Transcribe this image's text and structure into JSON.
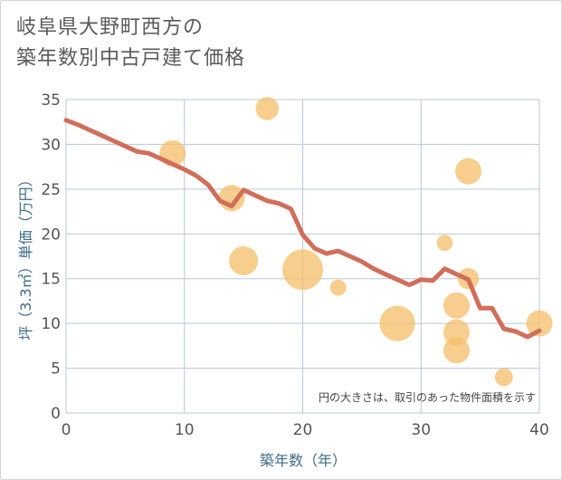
{
  "title_lines": [
    "岐阜県大野町西方の",
    "築年数別中古戸建て価格"
  ],
  "chart_data": {
    "type": "scatter",
    "title": "岐阜県大野町西方の築年数別中古戸建て価格",
    "xlabel": "築年数（年）",
    "ylabel": "坪（3.3㎡）単価（万円）",
    "xlim": [
      0,
      40
    ],
    "ylim": [
      0,
      35
    ],
    "xticks": [
      0,
      10,
      20,
      30,
      40
    ],
    "yticks": [
      0,
      5,
      10,
      15,
      20,
      25,
      30,
      35
    ],
    "grid": true,
    "note": "円の大きさは、取引のあった物件面積を示す",
    "bubbles": [
      {
        "x": 9,
        "y": 29,
        "size": 3
      },
      {
        "x": 14,
        "y": 24,
        "size": 3
      },
      {
        "x": 15,
        "y": 17,
        "size": 4
      },
      {
        "x": 17,
        "y": 34,
        "size": 2
      },
      {
        "x": 20,
        "y": 16,
        "size": 10
      },
      {
        "x": 23,
        "y": 14,
        "size": 0.5
      },
      {
        "x": 28,
        "y": 10,
        "size": 7
      },
      {
        "x": 32,
        "y": 19,
        "size": 0.5
      },
      {
        "x": 33,
        "y": 12,
        "size": 3
      },
      {
        "x": 33,
        "y": 9,
        "size": 3
      },
      {
        "x": 33,
        "y": 7,
        "size": 3
      },
      {
        "x": 34,
        "y": 27,
        "size": 3
      },
      {
        "x": 34,
        "y": 15,
        "size": 1.5
      },
      {
        "x": 37,
        "y": 4,
        "size": 0.8
      },
      {
        "x": 40,
        "y": 10,
        "size": 3
      }
    ],
    "trend_line": {
      "x": [
        0,
        1,
        2,
        3,
        4,
        5,
        6,
        7,
        8,
        9,
        10,
        11,
        12,
        13,
        14,
        15,
        16,
        17,
        18,
        19,
        20,
        21,
        22,
        23,
        24,
        25,
        26,
        27,
        28,
        29,
        30,
        31,
        32,
        33,
        34,
        35,
        36,
        37,
        38,
        39,
        40
      ],
      "y": [
        32.7,
        32.2,
        31.6,
        31.0,
        30.4,
        29.8,
        29.2,
        29.0,
        28.4,
        27.8,
        27.2,
        26.5,
        25.5,
        23.7,
        23.1,
        24.9,
        24.3,
        23.7,
        23.4,
        22.8,
        19.9,
        18.4,
        17.8,
        18.1,
        17.5,
        16.9,
        16.1,
        15.5,
        14.9,
        14.3,
        14.9,
        14.8,
        16.1,
        15.5,
        14.9,
        11.7,
        11.7,
        9.4,
        9.1,
        8.5,
        9.2
      ]
    },
    "colors": {
      "bubble": "#f5c06d",
      "line": "#d16e5a",
      "grid": "#b8c7d8",
      "axis_text": "#3f6d87"
    }
  }
}
